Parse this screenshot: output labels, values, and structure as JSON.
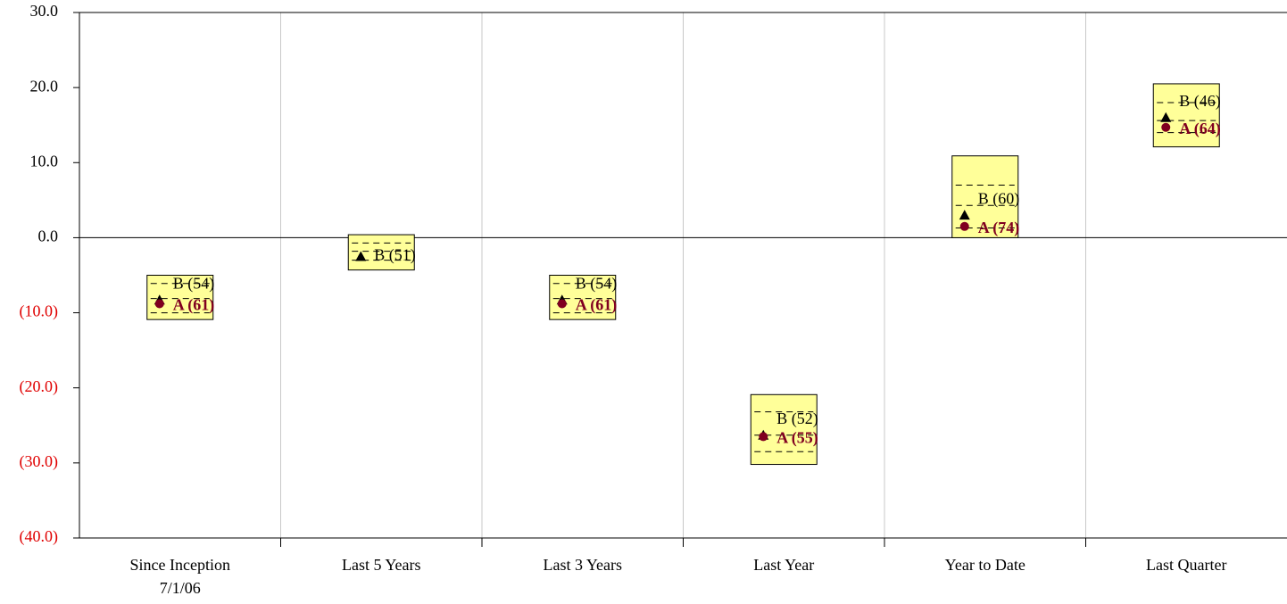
{
  "chart_data": {
    "type": "floating-box",
    "categories": [
      "Since Inception\n7/1/06",
      "Last 5 Years",
      "Last 3 Years",
      "Last Year",
      "Year to Date",
      "Last Quarter"
    ],
    "boxes": {
      "top": [
        -5.0,
        0.4,
        -5.0,
        -20.9,
        10.9,
        20.5
      ],
      "upper": [
        -6.1,
        -0.7,
        -6.1,
        -23.2,
        7.0,
        18.0
      ],
      "median": [
        -8.1,
        -1.8,
        -8.1,
        -26.3,
        4.3,
        15.6
      ],
      "lower": [
        -10.0,
        -3.0,
        -10.0,
        -28.5,
        1.3,
        14.0
      ],
      "bottom": [
        -10.9,
        -4.3,
        -10.9,
        -30.2,
        0.0,
        12.1
      ],
      "color": "#ffff99"
    },
    "series": [
      {
        "name": "B",
        "color": "#000000",
        "marker": "triangle",
        "values": [
          -8.3,
          -2.5,
          -8.3,
          -26.3,
          3.0,
          16.0
        ],
        "labels": [
          "B (54)",
          "B (51)",
          "B (54)",
          "B (52)",
          "B (60)",
          "B (46)"
        ]
      },
      {
        "name": "A",
        "color": "#800020",
        "marker": "circle",
        "values": [
          -8.8,
          null,
          -8.8,
          -26.5,
          1.5,
          14.7
        ],
        "labels": [
          "A (61)",
          null,
          "A (61)",
          "A (55)",
          "A (74)",
          "A (64)"
        ]
      }
    ],
    "ylim": [
      -40,
      30
    ],
    "yticks": [
      {
        "value": -40,
        "label": "(40.0)"
      },
      {
        "value": -30,
        "label": "(30.0)"
      },
      {
        "value": -20,
        "label": "(20.0)"
      },
      {
        "value": -10,
        "label": "(10.0)"
      },
      {
        "value": 0,
        "label": "0.0"
      },
      {
        "value": 10,
        "label": "10.0"
      },
      {
        "value": 20,
        "label": "20.0"
      },
      {
        "value": 30,
        "label": "30.0"
      }
    ],
    "negative_tick_color": "#e00000"
  }
}
